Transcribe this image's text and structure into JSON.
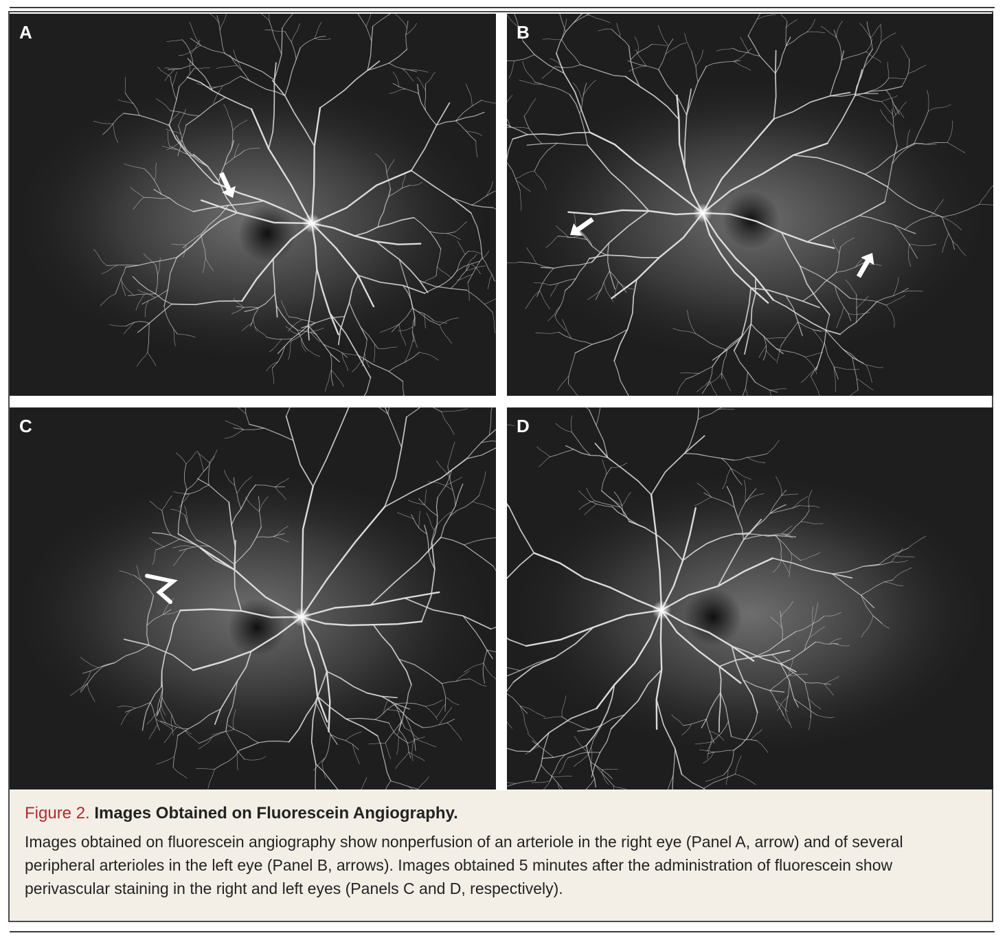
{
  "figure": {
    "panels": [
      {
        "id": "pA",
        "label": "A",
        "image": "fluorescein-angiogram-right-eye",
        "disc": [
          440,
          305
        ],
        "fovea": [
          375,
          320
        ],
        "arrows": [
          {
            "angle": 65,
            "at": [
              325,
              268
            ]
          }
        ],
        "hotspot": false
      },
      {
        "id": "pB",
        "label": "B",
        "image": "fluorescein-angiogram-left-eye",
        "disc": [
          285,
          290
        ],
        "fovea": [
          355,
          300
        ],
        "arrows": [
          {
            "angle": 145,
            "at": [
              92,
              322
            ]
          },
          {
            "angle": 300,
            "at": [
              532,
              348
            ]
          }
        ],
        "hotspot": false
      },
      {
        "id": "pC",
        "label": "C",
        "image": "fluorescein-angiogram-right-eye-late",
        "disc": [
          425,
          305
        ],
        "fovea": [
          360,
          320
        ],
        "arrows": [],
        "hotspot": true
      },
      {
        "id": "pD",
        "label": "D",
        "image": "fluorescein-angiogram-left-eye-late",
        "disc": [
          225,
          295
        ],
        "fovea": [
          300,
          305
        ],
        "arrows": [],
        "hotspot": false
      }
    ],
    "caption": {
      "number": "Figure 2.",
      "title": "Images Obtained on Fluorescein Angiography.",
      "text": "Images obtained on fluorescein angiography show nonperfusion of an arteriole in the right eye (Panel A, arrow) and of several peripheral arterioles in the left eye (Panel B, arrows). Images obtained 5 minutes after the administration of fluorescein show perivascular staining in the right and left eyes (Panels C and D, respectively)."
    }
  }
}
